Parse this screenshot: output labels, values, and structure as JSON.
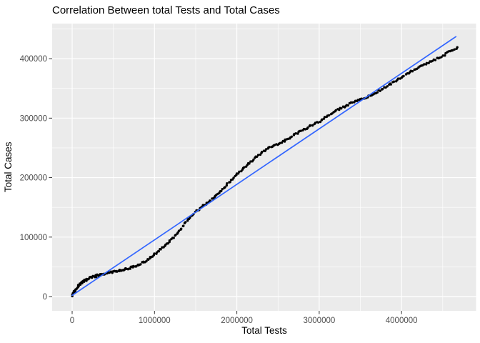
{
  "title": "Correlation Between total Tests and Total Cases",
  "chart_data": {
    "type": "scatter",
    "title": "Correlation Between total Tests and Total Cases",
    "xlabel": "Total Tests",
    "ylabel": "Total Cases",
    "x_ticks": [
      0,
      1000000,
      2000000,
      3000000,
      4000000
    ],
    "x_tick_labels": [
      "0",
      "1000000",
      "2000000",
      "3000000",
      "4000000"
    ],
    "x_minor_ticks": [
      500000,
      1500000,
      2500000,
      3500000,
      4500000
    ],
    "y_ticks": [
      0,
      100000,
      200000,
      300000,
      400000
    ],
    "y_tick_labels": [
      "0",
      "100000",
      "200000",
      "300000",
      "400000"
    ],
    "y_minor_ticks": [
      50000,
      150000,
      250000,
      350000,
      450000
    ],
    "xlim": [
      -243000,
      4905000
    ],
    "ylim": [
      -24000,
      459000
    ],
    "grid": {
      "major": true,
      "minor": true
    },
    "legend": "none",
    "series": [
      {
        "name": "observed-data",
        "type": "points",
        "color": "#000000",
        "points": [
          [
            0,
            2000
          ],
          [
            20000,
            8000
          ],
          [
            50000,
            14000
          ],
          [
            80000,
            19000
          ],
          [
            120000,
            24000
          ],
          [
            160000,
            27500
          ],
          [
            220000,
            31000
          ],
          [
            300000,
            35000
          ],
          [
            400000,
            38500
          ],
          [
            500000,
            41500
          ],
          [
            600000,
            44500
          ],
          [
            700000,
            48000
          ],
          [
            800000,
            53000
          ],
          [
            900000,
            60000
          ],
          [
            1000000,
            71000
          ],
          [
            1100000,
            82000
          ],
          [
            1200000,
            95000
          ],
          [
            1300000,
            110000
          ],
          [
            1400000,
            128000
          ],
          [
            1500000,
            143000
          ],
          [
            1600000,
            153000
          ],
          [
            1700000,
            164000
          ],
          [
            1800000,
            176000
          ],
          [
            1900000,
            191000
          ],
          [
            2000000,
            205000
          ],
          [
            2100000,
            218000
          ],
          [
            2200000,
            230000
          ],
          [
            2300000,
            242000
          ],
          [
            2400000,
            252000
          ],
          [
            2500000,
            256000
          ],
          [
            2600000,
            264000
          ],
          [
            2700000,
            272000
          ],
          [
            2800000,
            280000
          ],
          [
            2900000,
            287000
          ],
          [
            3000000,
            294000
          ],
          [
            3100000,
            303000
          ],
          [
            3200000,
            313000
          ],
          [
            3300000,
            319000
          ],
          [
            3400000,
            326000
          ],
          [
            3500000,
            331000
          ],
          [
            3600000,
            336000
          ],
          [
            3700000,
            344000
          ],
          [
            3800000,
            352000
          ],
          [
            3900000,
            360000
          ],
          [
            4000000,
            369000
          ],
          [
            4100000,
            377000
          ],
          [
            4200000,
            385000
          ],
          [
            4300000,
            391000
          ],
          [
            4400000,
            398000
          ],
          [
            4500000,
            405000
          ],
          [
            4600000,
            413000
          ],
          [
            4680000,
            418000
          ]
        ]
      },
      {
        "name": "linear-fit-line",
        "type": "line",
        "color": "#3366FF",
        "points": [
          [
            0,
            2000
          ],
          [
            4660000,
            437000
          ]
        ]
      }
    ]
  },
  "colors": {
    "background": "#FFFFFF",
    "panel_bg": "#EBEBEB",
    "grid": "#FFFFFF",
    "point": "#000000",
    "smooth_line": "#3366FF",
    "tick_text": "#4D4D4D",
    "tick_mark": "#333333",
    "title_text": "#000000"
  }
}
